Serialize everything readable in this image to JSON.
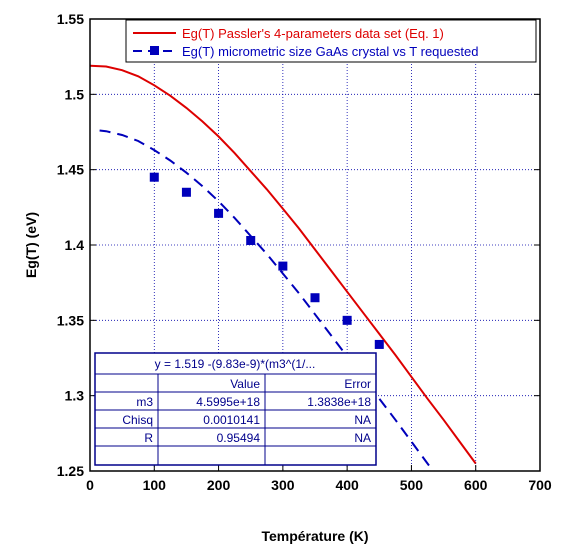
{
  "chart_data": {
    "type": "line",
    "xlabel": "Température (K)",
    "ylabel": "Eg(T) (eV)",
    "xlim": [
      0,
      700
    ],
    "ylim": [
      1.25,
      1.55
    ],
    "x_ticks": [
      "0",
      "100",
      "200",
      "300",
      "400",
      "500",
      "600",
      "700"
    ],
    "y_ticks": [
      "1.25",
      "1.3",
      "1.35",
      "1.4",
      "1.45",
      "1.5",
      "1.55"
    ],
    "grid": true,
    "legend_position": "top-right",
    "series": [
      {
        "name": "Eg(T) Passler's 4-parameters data set (Eq. 1)",
        "style": "solid-line",
        "color": "#dd0000",
        "x": [
          0,
          25,
          50,
          75,
          100,
          125,
          150,
          175,
          200,
          225,
          250,
          275,
          300,
          325,
          350,
          375,
          400,
          425,
          450,
          475,
          500,
          525,
          550,
          575,
          600
        ],
        "y": [
          1.519,
          1.5185,
          1.516,
          1.512,
          1.506,
          1.499,
          1.491,
          1.482,
          1.472,
          1.461,
          1.449,
          1.437,
          1.424,
          1.411,
          1.397,
          1.383,
          1.369,
          1.355,
          1.341,
          1.327,
          1.3125,
          1.298,
          1.284,
          1.2695,
          1.255
        ]
      },
      {
        "name": "Eg(T)  micrometric size GaAs crystal vs T requested",
        "style": "dashed-line",
        "color": "#0000bb",
        "x": [
          15,
          25,
          50,
          75,
          100,
          125,
          150,
          175,
          200,
          225,
          250,
          275,
          300,
          325,
          350,
          375,
          400,
          425,
          450,
          475,
          500,
          525,
          550,
          575,
          600
        ],
        "y": [
          1.476,
          1.4755,
          1.473,
          1.469,
          1.463,
          1.456,
          1.448,
          1.439,
          1.429,
          1.418,
          1.406,
          1.394,
          1.381,
          1.368,
          1.354,
          1.34,
          1.326,
          1.312,
          1.298,
          1.284,
          1.2695,
          1.255,
          1.241,
          1.2265,
          1.212
        ]
      },
      {
        "name": "data points",
        "style": "markers",
        "color": "#0000bb",
        "x": [
          100,
          150,
          200,
          250,
          300,
          350,
          400,
          450
        ],
        "y": [
          1.445,
          1.435,
          1.421,
          1.403,
          1.386,
          1.365,
          1.35,
          1.334
        ]
      }
    ],
    "fit_table": {
      "equation": "y = 1.519 -(9.83e-9)*(m3^(1/...",
      "headers": [
        "",
        "Value",
        "Error"
      ],
      "rows": [
        [
          "m3",
          "4.5995e+18",
          "1.3838e+18"
        ],
        [
          "Chisq",
          "0.0010141",
          "NA"
        ],
        [
          "R",
          "0.95494",
          "NA"
        ]
      ]
    }
  }
}
